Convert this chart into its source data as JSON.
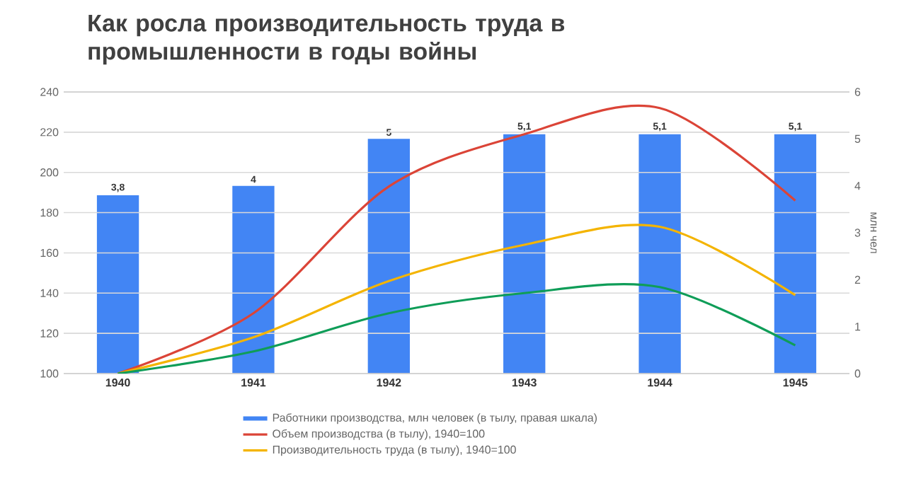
{
  "chart_data": {
    "type": "bar",
    "title": "Как росла производительность труда в промышленности в годы войны",
    "categories": [
      "1940",
      "1941",
      "1942",
      "1943",
      "1944",
      "1945"
    ],
    "series": [
      {
        "name": "Работники производства, млн человек (в тылу, правая шкала)",
        "axis": "y2",
        "color": "#4285f4",
        "values": [
          3.8,
          4,
          5,
          5.1,
          5.1,
          5.1
        ],
        "value_labels": [
          "3,8",
          "4",
          "5",
          "5,1",
          "5,1",
          "5,1"
        ]
      },
      {
        "name": "Объем производства (в тылу), 1940=100",
        "type": "line",
        "color": "#db4437",
        "values": [
          100,
          130,
          193,
          219,
          232,
          186
        ]
      },
      {
        "name": "Производительность труда (в тылу), 1940=100",
        "type": "line",
        "color": "#f4b400",
        "values": [
          100,
          118,
          146,
          164,
          173,
          139
        ]
      },
      {
        "type": "line",
        "color": "#0f9d58",
        "values": [
          100,
          111,
          130,
          140,
          143,
          114
        ]
      }
    ],
    "ylim": [
      100,
      240
    ],
    "yticks": [
      100,
      120,
      140,
      160,
      180,
      200,
      220,
      240
    ],
    "y2lim": [
      0,
      6
    ],
    "y2ticks": [
      0,
      1,
      2,
      3,
      4,
      5,
      6
    ],
    "y2label": "млн чел",
    "grid": "y",
    "legend": "bottom"
  }
}
